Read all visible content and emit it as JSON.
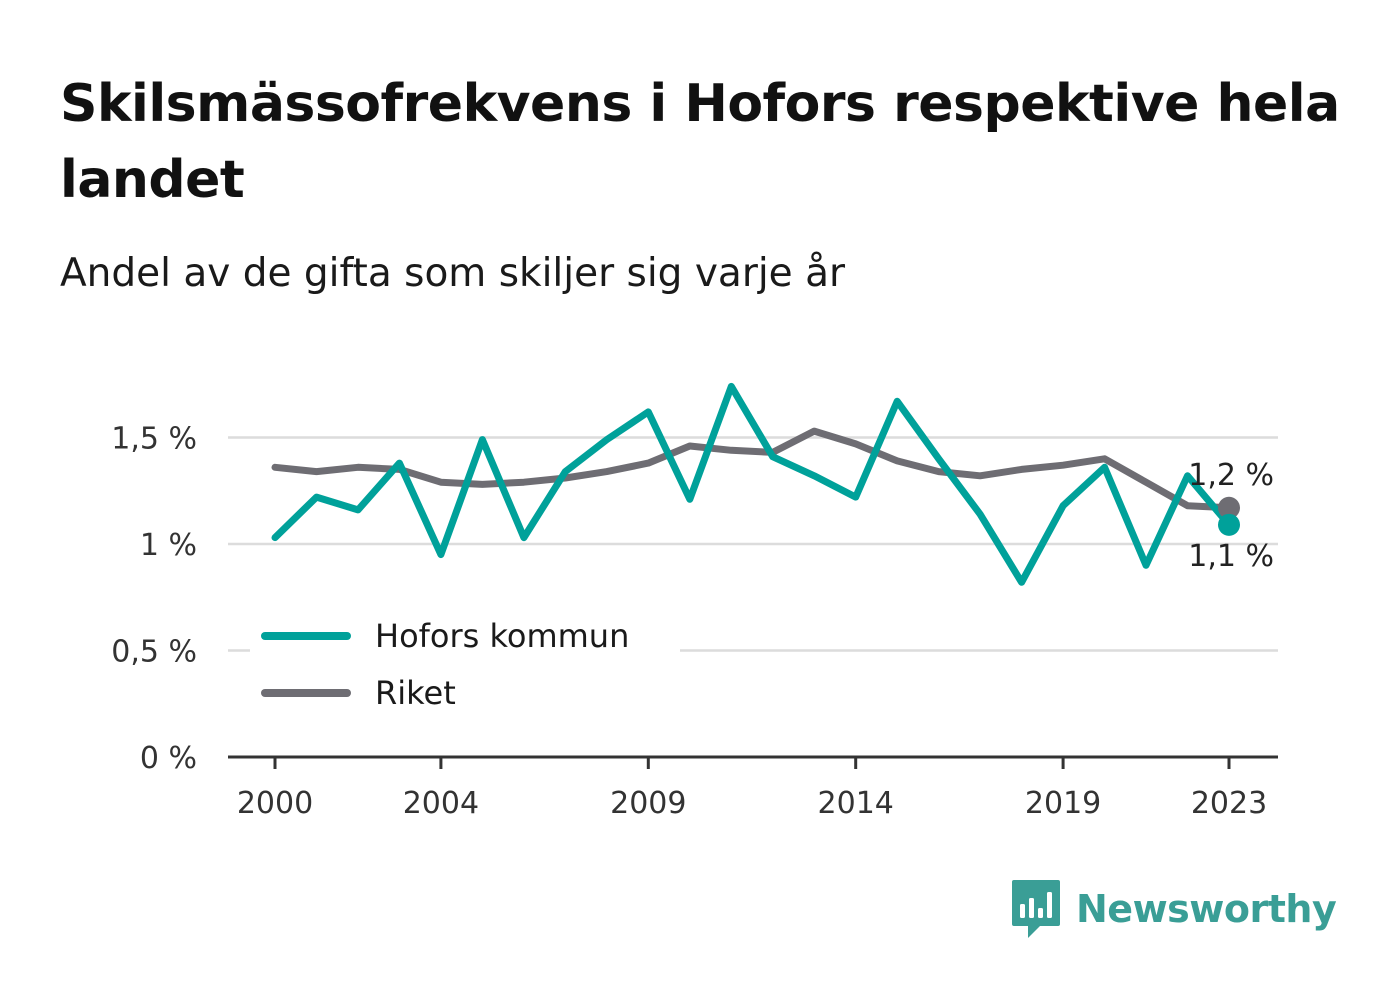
{
  "title": "Skilsmässofrekvens i Hofors respektive hela landet",
  "subtitle": "Andel av de gifta som skiljer sig varje år",
  "brand": {
    "name": "Newsworthy",
    "icon": "bar-chart-speech-bubble-icon",
    "color": "#3a9e96"
  },
  "chart_data": {
    "type": "line",
    "title": "Skilsmässofrekvens i Hofors respektive hela landet",
    "subtitle": "Andel av de gifta som skiljer sig varje år",
    "xlabel": "",
    "ylabel": "",
    "x": [
      2000,
      2001,
      2002,
      2003,
      2004,
      2005,
      2006,
      2007,
      2008,
      2009,
      2010,
      2011,
      2012,
      2013,
      2014,
      2015,
      2016,
      2017,
      2018,
      2019,
      2020,
      2021,
      2022,
      2023
    ],
    "x_ticks": [
      "2000",
      "2004",
      "2009",
      "2014",
      "2019",
      "2023"
    ],
    "x_tick_values": [
      2000,
      2004,
      2009,
      2014,
      2019,
      2023
    ],
    "ylim": [
      0,
      1.75
    ],
    "y_ticks": [
      0,
      0.5,
      1,
      1.5
    ],
    "y_tick_labels": [
      "0 %",
      "0,5 %",
      "1 %",
      "1,5 %"
    ],
    "grid": true,
    "legend_position": "bottom-left",
    "series": [
      {
        "name": "Hofors kommun",
        "color": "#00a19a",
        "values": [
          1.03,
          1.22,
          1.16,
          1.38,
          0.95,
          1.49,
          1.03,
          1.34,
          1.49,
          1.62,
          1.21,
          1.74,
          1.41,
          1.32,
          1.22,
          1.67,
          1.4,
          1.14,
          0.82,
          1.18,
          1.36,
          0.9,
          1.32,
          1.09
        ],
        "end_label": "1,1 %"
      },
      {
        "name": "Riket",
        "color": "#6e6d73",
        "values": [
          1.36,
          1.34,
          1.36,
          1.35,
          1.29,
          1.28,
          1.29,
          1.31,
          1.34,
          1.38,
          1.46,
          1.44,
          1.43,
          1.53,
          1.47,
          1.39,
          1.34,
          1.32,
          1.35,
          1.37,
          1.4,
          1.29,
          1.18,
          1.17
        ],
        "end_label": "1,2 %"
      }
    ]
  }
}
